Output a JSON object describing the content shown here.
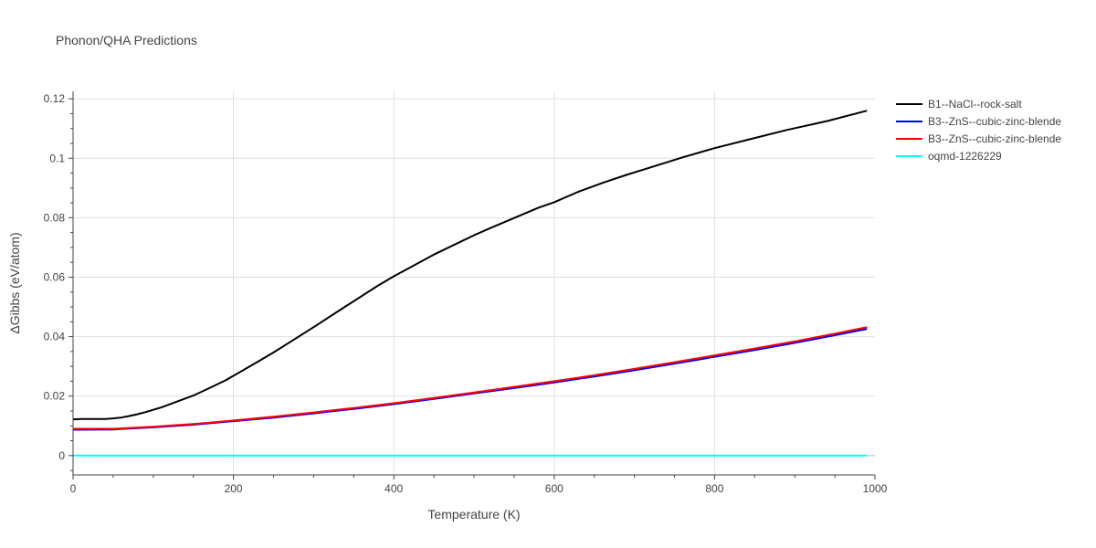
{
  "chart_data": {
    "type": "line",
    "title": "Phonon/QHA Predictions",
    "xlabel": "Temperature (K)",
    "ylabel": "ΔGibbs (eV/atom)",
    "xlim": [
      0,
      1000
    ],
    "ylim": [
      -0.0065,
      0.1225
    ],
    "xticks": [
      0,
      200,
      400,
      600,
      800,
      1000
    ],
    "yticks": [
      0,
      0.02,
      0.04,
      0.06,
      0.08,
      0.1,
      0.12
    ],
    "xtick_labels": [
      "0",
      "200",
      "400",
      "600",
      "800",
      "1000"
    ],
    "ytick_labels": [
      "0",
      "0.02",
      "0.04",
      "0.06",
      "0.08",
      "0.1",
      "0.12"
    ],
    "grid": true,
    "legend_position": "top-right (outside plot)",
    "series": [
      {
        "name": "B1--NaCl--rock-salt",
        "color": "#000000",
        "x": [
          0,
          10,
          20,
          30,
          40,
          50,
          60,
          70,
          80,
          90,
          100,
          110,
          120,
          130,
          140,
          150,
          170,
          190,
          210,
          230,
          250,
          270,
          300,
          340,
          380,
          400,
          450,
          500,
          520,
          550,
          580,
          600,
          630,
          660,
          690,
          720,
          760,
          800,
          850,
          890,
          940,
          990
        ],
        "y": [
          0.0122,
          0.0123,
          0.0123,
          0.0123,
          0.0123,
          0.0125,
          0.0128,
          0.0133,
          0.0139,
          0.0146,
          0.0154,
          0.0162,
          0.0172,
          0.0182,
          0.0192,
          0.0202,
          0.0227,
          0.0253,
          0.0284,
          0.0315,
          0.0347,
          0.0381,
          0.0432,
          0.0502,
          0.0571,
          0.0603,
          0.0676,
          0.0741,
          0.0765,
          0.0799,
          0.0833,
          0.0852,
          0.0887,
          0.0917,
          0.0944,
          0.0969,
          0.1003,
          0.1034,
          0.1068,
          0.1095,
          0.1125,
          0.116
        ]
      },
      {
        "name": "B3--ZnS--cubic-zinc-blende",
        "color": "#0000ff",
        "x": [
          0,
          50,
          100,
          150,
          200,
          250,
          300,
          350,
          400,
          450,
          500,
          550,
          600,
          650,
          700,
          750,
          800,
          850,
          900,
          950,
          990
        ],
        "y": [
          0.0087,
          0.0088,
          0.0095,
          0.0104,
          0.0116,
          0.0128,
          0.0142,
          0.0157,
          0.0173,
          0.0191,
          0.0209,
          0.0227,
          0.0246,
          0.0266,
          0.0287,
          0.0309,
          0.0332,
          0.0355,
          0.0379,
          0.0405,
          0.0426
        ]
      },
      {
        "name": "B3--ZnS--cubic-zinc-blende",
        "color": "#ff0000",
        "x": [
          0,
          50,
          100,
          150,
          200,
          250,
          300,
          350,
          400,
          450,
          500,
          550,
          600,
          650,
          700,
          750,
          800,
          850,
          900,
          950,
          990
        ],
        "y": [
          0.009,
          0.009,
          0.0097,
          0.0106,
          0.0118,
          0.0131,
          0.0145,
          0.016,
          0.0176,
          0.0194,
          0.0212,
          0.0231,
          0.025,
          0.027,
          0.0292,
          0.0314,
          0.0337,
          0.036,
          0.0384,
          0.041,
          0.0432
        ]
      },
      {
        "name": "oqmd-1226229",
        "color": "#00ffff",
        "x": [
          0,
          990
        ],
        "y": [
          0,
          0
        ]
      }
    ]
  }
}
